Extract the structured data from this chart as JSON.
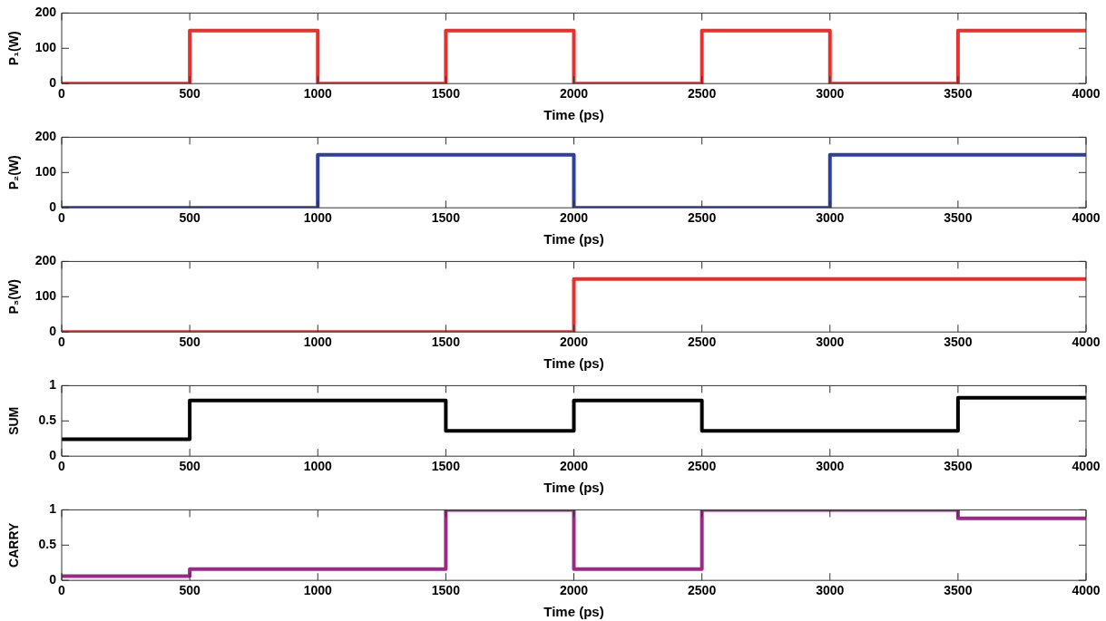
{
  "chart_data": [
    {
      "type": "step",
      "ylabel": "P₁(W)",
      "xlabel": "Time (ps)",
      "x": [
        0,
        500,
        1000,
        1500,
        2000,
        2500,
        3000,
        3500,
        4000
      ],
      "values": [
        0,
        150,
        0,
        150,
        0,
        150,
        0,
        150,
        150
      ],
      "color": "#e8302e",
      "xlim": [
        0,
        4000
      ],
      "xticks": [
        0,
        500,
        1000,
        1500,
        2000,
        2500,
        3000,
        3500,
        4000
      ],
      "ylim": [
        0,
        200
      ],
      "yticks": [
        0,
        100,
        200
      ],
      "grid": false,
      "legend": false
    },
    {
      "type": "step",
      "ylabel": "P₂(W)",
      "xlabel": "Time (ps)",
      "x": [
        0,
        1000,
        2000,
        3000,
        4000
      ],
      "values": [
        0,
        150,
        0,
        150,
        150
      ],
      "color": "#2e3f9e",
      "xlim": [
        0,
        4000
      ],
      "xticks": [
        0,
        500,
        1000,
        1500,
        2000,
        2500,
        3000,
        3500,
        4000
      ],
      "ylim": [
        0,
        200
      ],
      "yticks": [
        0,
        100,
        200
      ],
      "grid": false,
      "legend": false
    },
    {
      "type": "step",
      "ylabel": "P₃(W)",
      "xlabel": "Time (ps)",
      "x": [
        0,
        2000,
        4000
      ],
      "values": [
        0,
        150,
        150
      ],
      "color": "#e8302e",
      "xlim": [
        0,
        4000
      ],
      "xticks": [
        0,
        500,
        1000,
        1500,
        2000,
        2500,
        3000,
        3500,
        4000
      ],
      "ylim": [
        0,
        200
      ],
      "yticks": [
        0,
        100,
        200
      ],
      "grid": false,
      "legend": false
    },
    {
      "type": "step",
      "ylabel": "SUM",
      "xlabel": "Time (ps)",
      "x": [
        0,
        500,
        1500,
        2000,
        2500,
        3500,
        4000
      ],
      "values": [
        0.24,
        0.79,
        0.36,
        0.79,
        0.36,
        0.83,
        0.83
      ],
      "color": "#000000",
      "xlim": [
        0,
        4000
      ],
      "xticks": [
        0,
        500,
        1000,
        1500,
        2000,
        2500,
        3000,
        3500,
        4000
      ],
      "ylim": [
        0,
        1
      ],
      "yticks": [
        0,
        0.5,
        1
      ],
      "grid": false,
      "legend": false
    },
    {
      "type": "step",
      "ylabel": "CARRY",
      "xlabel": "Time (ps)",
      "x": [
        0,
        500,
        1500,
        2000,
        2500,
        3500,
        4000
      ],
      "values": [
        0.06,
        0.16,
        1,
        0.16,
        1,
        0.88,
        0.88
      ],
      "color": "#9b2a87",
      "xlim": [
        0,
        4000
      ],
      "xticks": [
        0,
        500,
        1000,
        1500,
        2000,
        2500,
        3000,
        3500,
        4000
      ],
      "ylim": [
        0,
        1
      ],
      "yticks": [
        0,
        0.5,
        1
      ],
      "grid": false,
      "legend": false
    }
  ]
}
